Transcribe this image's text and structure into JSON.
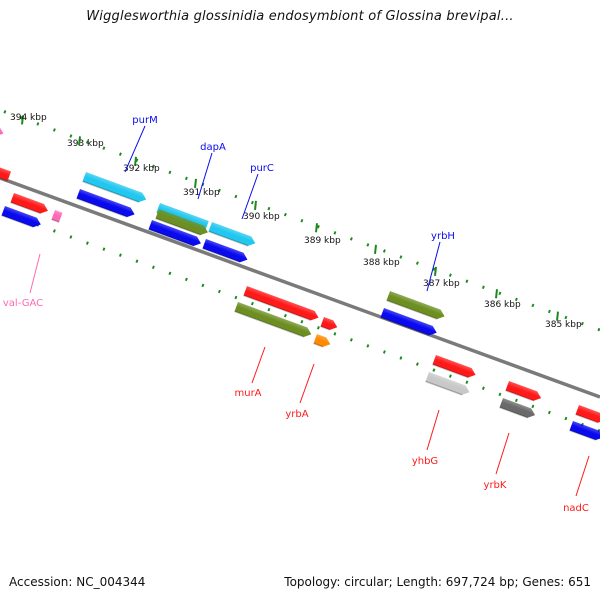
{
  "title": "Wigglesworthia glossinidia endosymbiont of Glossina brevipal...",
  "accession": "Accession: NC_004344",
  "topology": "Topology: circular; Length: 697,724 bp; Genes: 651",
  "colors": {
    "red": "#ff1a1a",
    "blue": "#0a0aee",
    "cyan": "#22c7f0",
    "olive": "#6d8f22",
    "orange": "#ff8a00",
    "gray": "#c8c8c8",
    "darkgray": "#6a6a6a",
    "pink": "#ff69b4",
    "ruler": "#1a8a1a",
    "backbone": "#7a7a7a"
  },
  "ticks": [
    "394 kbp",
    "393 kbp",
    "392 kbp",
    "391 kbp",
    "390 kbp",
    "389 kbp",
    "388 kbp",
    "387 kbp",
    "386 kbp",
    "385 kbp"
  ],
  "genes": [
    {
      "name": "purM",
      "color": "blue"
    },
    {
      "name": "dapA",
      "color": "blue"
    },
    {
      "name": "purC",
      "color": "blue"
    },
    {
      "name": "yrbH",
      "color": "blue"
    },
    {
      "name": "val-GAC",
      "color": "pink"
    },
    {
      "name": "murA",
      "color": "red"
    },
    {
      "name": "yrbA",
      "color": "red"
    },
    {
      "name": "yhbG",
      "color": "red"
    },
    {
      "name": "yrbK",
      "color": "red"
    },
    {
      "name": "nadC",
      "color": "red"
    }
  ]
}
